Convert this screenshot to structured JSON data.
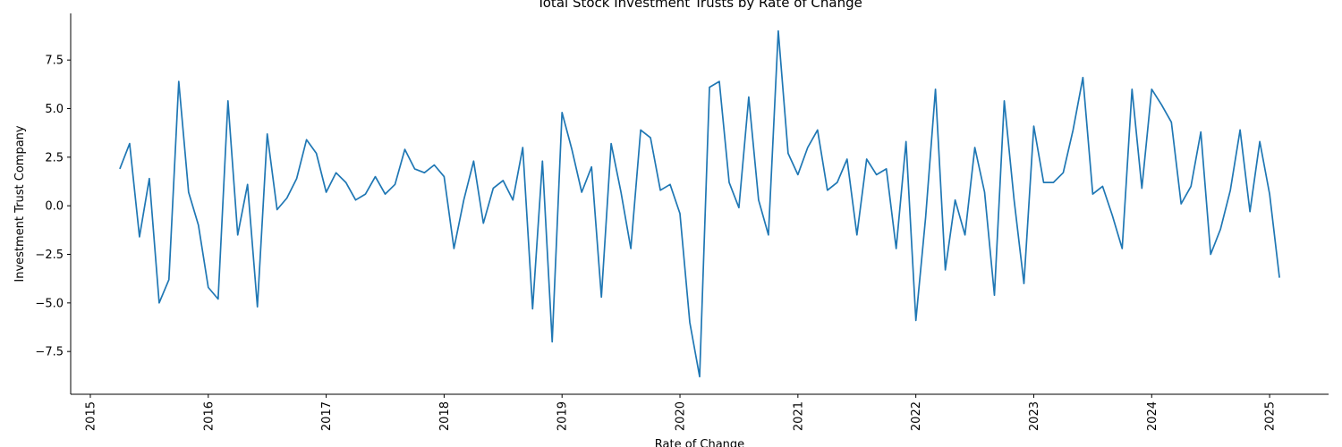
{
  "chart_data": {
    "type": "line",
    "title": "Total Stock Investment Trusts by Rate of Change",
    "xlabel": "Rate of Change",
    "ylabel": "Investment Trust Company",
    "grid": false,
    "legend": "none",
    "line_color": "#1f77b4",
    "x_ticks": [
      "2015",
      "2016",
      "2017",
      "2018",
      "2019",
      "2020",
      "2021",
      "2022",
      "2023",
      "2024",
      "2025"
    ],
    "y_ticks": [
      "−7.5",
      "−5.0",
      "−2.5",
      "0.0",
      "2.5",
      "5.0",
      "7.5"
    ],
    "y_tick_values": [
      -7.5,
      -5.0,
      -2.5,
      0.0,
      2.5,
      5.0,
      7.5
    ],
    "xlim": [
      "2014-11",
      "2025-07"
    ],
    "ylim": [
      -9.7,
      9.9
    ],
    "series": [
      {
        "x": [
          "2015-04",
          "2015-05",
          "2015-06",
          "2015-07",
          "2015-08",
          "2015-09",
          "2015-10",
          "2015-11",
          "2015-12",
          "2016-01",
          "2016-02",
          "2016-03",
          "2016-04",
          "2016-05",
          "2016-06",
          "2016-07",
          "2016-08",
          "2016-09",
          "2016-10",
          "2016-11",
          "2016-12",
          "2017-01",
          "2017-02",
          "2017-03",
          "2017-04",
          "2017-05",
          "2017-06",
          "2017-07",
          "2017-08",
          "2017-09",
          "2017-10",
          "2017-11",
          "2017-12",
          "2018-01",
          "2018-02",
          "2018-03",
          "2018-04",
          "2018-05",
          "2018-06",
          "2018-07",
          "2018-08",
          "2018-09",
          "2018-10",
          "2018-11",
          "2018-12",
          "2019-01",
          "2019-02",
          "2019-03",
          "2019-04",
          "2019-05",
          "2019-06",
          "2019-07",
          "2019-08",
          "2019-09",
          "2019-10",
          "2019-11",
          "2019-12",
          "2020-01",
          "2020-02",
          "2020-03",
          "2020-04",
          "2020-05",
          "2020-06",
          "2020-07",
          "2020-08",
          "2020-09",
          "2020-10",
          "2020-11",
          "2020-12",
          "2021-01",
          "2021-02",
          "2021-03",
          "2021-04",
          "2021-05",
          "2021-06",
          "2021-07",
          "2021-08",
          "2021-09",
          "2021-10",
          "2021-11",
          "2021-12",
          "2022-01",
          "2022-02",
          "2022-03",
          "2022-04",
          "2022-05",
          "2022-06",
          "2022-07",
          "2022-08",
          "2022-09",
          "2022-10",
          "2022-11",
          "2022-12",
          "2023-01",
          "2023-02",
          "2023-03",
          "2023-04",
          "2023-05",
          "2023-06",
          "2023-07",
          "2023-08",
          "2023-09",
          "2023-10",
          "2023-11",
          "2023-12",
          "2024-01",
          "2024-02",
          "2024-03",
          "2024-04",
          "2024-05",
          "2024-06",
          "2024-07",
          "2024-08",
          "2024-09",
          "2024-10",
          "2024-11",
          "2024-12",
          "2025-01",
          "2025-02"
        ],
        "values": [
          1.9,
          3.2,
          -1.6,
          1.4,
          -5.0,
          -3.8,
          6.4,
          0.7,
          -1.0,
          -4.2,
          -4.8,
          5.4,
          -1.5,
          1.1,
          -5.2,
          3.7,
          -0.2,
          0.4,
          1.4,
          3.4,
          2.7,
          0.7,
          1.7,
          1.2,
          0.3,
          0.6,
          1.5,
          0.6,
          1.1,
          2.9,
          1.9,
          1.7,
          2.1,
          1.5,
          -2.2,
          0.3,
          2.3,
          -0.9,
          0.9,
          1.3,
          0.3,
          3.0,
          -5.3,
          2.3,
          -7.0,
          4.8,
          2.9,
          0.7,
          2.0,
          -4.7,
          3.2,
          0.7,
          -2.2,
          3.9,
          3.5,
          0.8,
          1.1,
          -0.4,
          -6.0,
          -8.8,
          6.1,
          6.4,
          1.2,
          -0.1,
          5.6,
          0.3,
          -1.5,
          9.0,
          2.7,
          1.6,
          3.0,
          3.9,
          0.8,
          1.2,
          2.4,
          -1.5,
          2.4,
          1.6,
          1.9,
          -2.2,
          3.3,
          -5.9,
          -0.6,
          6.0,
          -3.3,
          0.3,
          -1.5,
          3.0,
          0.7,
          -4.6,
          5.4,
          0.3,
          -4.0,
          4.1,
          1.2,
          1.2,
          1.7,
          3.9,
          6.6,
          0.6,
          1.0,
          -0.5,
          -2.2,
          6.0,
          0.9,
          6.0,
          5.2,
          4.3,
          0.1,
          1.0,
          3.8,
          -2.5,
          -1.2,
          0.8,
          3.9,
          -0.3,
          3.3,
          0.6,
          -3.7
        ]
      }
    ]
  }
}
